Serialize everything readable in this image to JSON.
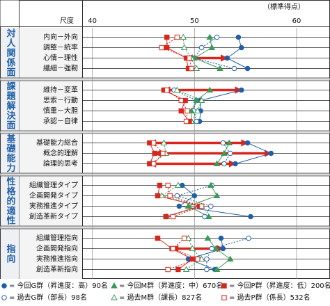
{
  "chart_data": {
    "type": "dot-profile",
    "axis_title": "尺度",
    "unit_label": "（標準得点）",
    "xlim": [
      39,
      63
    ],
    "xticks": [
      40,
      50,
      60
    ],
    "grid": true,
    "groups": [
      {
        "name": "対人関係面",
        "categories": [
          "内向－外向",
          "調整－統率",
          "心情－理性",
          "繊細－強靭"
        ]
      },
      {
        "name": "課題解決面",
        "categories": [
          "維持－変革",
          "思索－行動",
          "慎重－大胆",
          "承認－自律"
        ]
      },
      {
        "name": "基礎能力",
        "categories": [
          "基礎能力総合",
          "概念的理解",
          "論理的思考"
        ]
      },
      {
        "name": "性格的適性",
        "categories": [
          "組織管理タイプ",
          "企画開発タイプ",
          "実務推進タイプ",
          "創造革新タイプ"
        ]
      },
      {
        "name": "指向",
        "categories": [
          "組織管理指向",
          "企画開発指向",
          "実務推進指向",
          "創造革新指向"
        ]
      }
    ],
    "series": [
      {
        "name": "= 今回G群（昇進度：高）90名",
        "color": "#1f5fa8",
        "marker": "circle",
        "filled": true,
        "values": [
          54.3,
          54.6,
          53.2,
          55.2,
          54.6,
          50.6,
          50.6,
          50.5,
          55.2,
          57.5,
          54.0,
          48.8,
          50.0,
          48.5,
          55.5,
          52.6,
          52.8,
          49.4,
          52.0
        ]
      },
      {
        "name": "= 過去G群（部長）98名",
        "color": "#1f5fa8",
        "marker": "circle",
        "filled": false,
        "values": [
          52.2,
          50.7,
          50.0,
          53.9,
          48.0,
          50.2,
          49.9,
          50.2,
          52.8,
          53.5,
          52.9,
          51.7,
          48.3,
          51.6,
          51.0,
          55.3,
          51.7,
          51.2,
          51.2
        ]
      },
      {
        "name": "= 今回M群（昇進度：中）670名",
        "color": "#3a9a5a",
        "marker": "triangle",
        "filled": true,
        "values": [
          51.5,
          51.7,
          50.0,
          52.5,
          51.5,
          50.2,
          49.7,
          49.7,
          53.4,
          52.9,
          52.2,
          51.6,
          52.2,
          49.4,
          51.4,
          51.3,
          52.1,
          53.5,
          52.2
        ]
      },
      {
        "name": "= 過去M群（課長）827名",
        "color": "#3a9a5a",
        "marker": "triangle",
        "filled": false,
        "values": [
          48.9,
          49.0,
          49.7,
          50.2,
          48.3,
          50.7,
          50.3,
          49.7,
          47.0,
          47.2,
          45.8,
          48.4,
          46.8,
          50.7,
          47.3,
          49.4,
          49.8,
          50.7,
          49.2
        ]
      },
      {
        "name": "= 今回P群（昇進度：低）200名",
        "color": "#d9261c",
        "marker": "square",
        "filled": true,
        "values": [
          47.3,
          47.3,
          49.2,
          49.4,
          47.0,
          49.1,
          48.7,
          49.5,
          45.6,
          46.1,
          45.6,
          46.6,
          46.4,
          50.5,
          47.2,
          46.4,
          47.8,
          49.8,
          48.4
        ]
      },
      {
        "name": "= 過去P群（係長）532名",
        "color": "#d9261c",
        "marker": "square",
        "filled": false,
        "values": [
          48.3,
          46.8,
          49.5,
          49.7,
          47.3,
          48.7,
          49.3,
          49.2,
          46.0,
          46.9,
          46.0,
          47.4,
          47.6,
          50.7,
          47.9,
          49.0,
          47.9,
          50.3,
          47.4
        ]
      }
    ]
  }
}
